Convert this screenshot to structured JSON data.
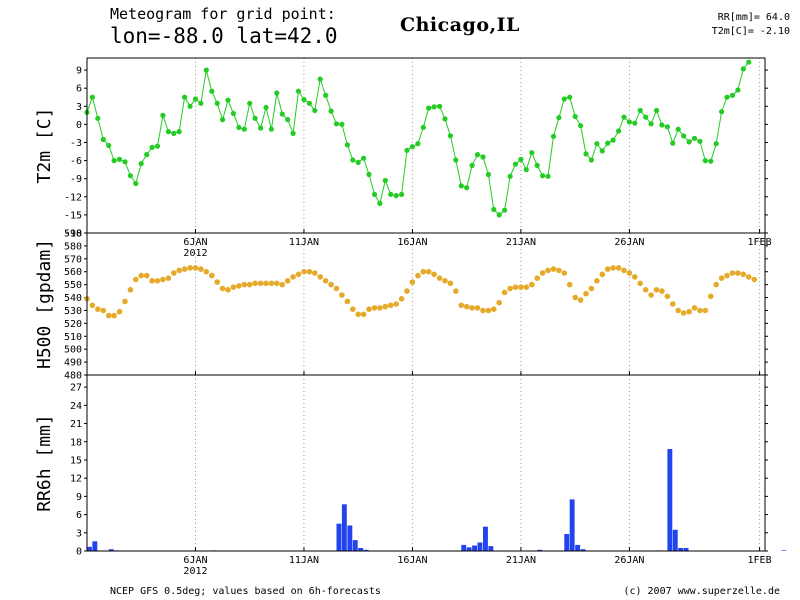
{
  "header": {
    "title": "Meteogram for grid point:",
    "coords": "lon=-88.0 lat=42.0",
    "location": "Chicago,IL",
    "rr_summary": "RR[mm]= 64.0",
    "t2m_summary": "T2m[C]= -2.10"
  },
  "footer": {
    "source": "NCEP GFS 0.5deg; values based on 6h-forecasts",
    "copyright": "(c) 2007 www.superzelle.de"
  },
  "x_axis": {
    "start": "2012-01-01",
    "end": "2012-02-01",
    "ticks": [
      {
        "label": "6JAN",
        "day": 5,
        "year": "2012"
      },
      {
        "label": "11JAN",
        "day": 10,
        "year": ""
      },
      {
        "label": "16JAN",
        "day": 15,
        "year": ""
      },
      {
        "label": "21JAN",
        "day": 20,
        "year": ""
      },
      {
        "label": "26JAN",
        "day": 25,
        "year": ""
      },
      {
        "label": "1FEB",
        "day": 31,
        "year": ""
      }
    ]
  },
  "chart_data": [
    {
      "type": "line",
      "ylabel": "T2m [C]",
      "color": "#22cc22",
      "ylim": [
        -18,
        11
      ],
      "yticks": [
        -18,
        -15,
        -12,
        -9,
        -6,
        -3,
        0,
        3,
        6,
        9
      ],
      "step_hours": 6,
      "values": [
        2,
        4.5,
        1,
        -2.5,
        -3.5,
        -6,
        -5.8,
        -6.2,
        -8.5,
        -9.8,
        -6.5,
        -5,
        -3.8,
        -3.6,
        1.5,
        -1.2,
        -1.5,
        -1.2,
        4.5,
        3,
        4.2,
        3.5,
        9,
        5.5,
        3.5,
        0.8,
        4,
        1.8,
        -0.5,
        -0.8,
        3.5,
        1,
        -0.6,
        2.8,
        -0.8,
        5.2,
        1.7,
        0.8,
        -1.5,
        5.5,
        4.1,
        3.5,
        2.3,
        7.5,
        4.8,
        2.2,
        0.1,
        0,
        -3.4,
        -5.9,
        -6.3,
        -5.6,
        -8.3,
        -11.6,
        -13.1,
        -9.3,
        -11.6,
        -11.8,
        -11.6,
        -4.3,
        -3.7,
        -3.2,
        -0.5,
        2.7,
        2.9,
        3,
        0.9,
        -1.9,
        -5.9,
        -10.2,
        -10.5,
        -6.8,
        -5,
        -5.4,
        -8.3,
        -14.1,
        -15,
        -14.2,
        -8.6,
        -6.6,
        -5.8,
        -7.5,
        -4.7,
        -6.8,
        -8.5,
        -8.6,
        -2,
        1.1,
        4.2,
        4.5,
        1.3,
        -0.2,
        -4.9,
        -5.9,
        -3.2,
        -4.4,
        -3.1,
        -2.6,
        -1.1,
        1.2,
        0.4,
        0.2,
        2.3,
        1.2,
        0.1,
        2.3,
        -0.1,
        -0.4,
        -3.1,
        -0.8,
        -1.9,
        -2.9,
        -2.3,
        -2.8,
        -6,
        -6.1,
        -3.2,
        2.1,
        4.5,
        4.8,
        5.7,
        9.2,
        10.3
      ]
    },
    {
      "type": "scatter",
      "ylabel": "H500 [gpdam]",
      "color": "#e6aa2a",
      "ylim": [
        480,
        590
      ],
      "yticks": [
        480,
        490,
        500,
        510,
        520,
        530,
        540,
        550,
        560,
        570,
        580,
        590
      ],
      "step_hours": 6,
      "values": [
        539,
        534,
        531,
        530,
        526,
        526,
        529,
        537,
        546,
        554,
        557,
        557,
        553,
        553,
        554,
        555,
        559,
        561,
        562,
        563,
        563,
        562,
        560,
        557,
        552,
        547,
        546,
        548,
        549,
        550,
        550,
        551,
        551,
        551,
        551,
        551,
        550,
        553,
        556,
        558,
        560,
        560,
        559,
        556,
        553,
        550,
        547,
        542,
        537,
        531,
        527,
        527,
        531,
        532,
        532,
        533,
        534,
        535,
        539,
        545,
        552,
        557,
        560,
        560,
        558,
        555,
        553,
        551,
        545,
        534,
        533,
        532,
        532,
        530,
        530,
        531,
        536,
        544,
        547,
        548,
        548,
        548,
        550,
        555,
        559,
        561,
        562,
        561,
        559,
        550,
        540,
        538,
        543,
        547,
        553,
        558,
        562,
        563,
        563,
        561,
        559,
        556,
        551,
        546,
        542,
        546,
        545,
        541,
        535,
        530,
        528,
        529,
        532,
        530,
        530,
        541,
        550,
        555,
        557,
        559,
        559,
        558,
        556,
        554
      ]
    },
    {
      "type": "bar",
      "ylabel": "RR6h [mm]",
      "color": "#2244ee",
      "ylim": [
        0,
        29
      ],
      "yticks": [
        0,
        3,
        6,
        9,
        12,
        15,
        18,
        21,
        24,
        27
      ],
      "step_hours": 6,
      "values": [
        0.7,
        1.6,
        0,
        0,
        0.3,
        0.1,
        0,
        0,
        0,
        0,
        0,
        0,
        0,
        0,
        0,
        0,
        0,
        0,
        0,
        0,
        0,
        0,
        0,
        0.1,
        0,
        0,
        0,
        0,
        0,
        0,
        0,
        0,
        0,
        0,
        0,
        0,
        0,
        0,
        0,
        0,
        0,
        0,
        0,
        0,
        0,
        0,
        4.5,
        7.7,
        4.2,
        1.8,
        0.5,
        0.2,
        0,
        0,
        0,
        0,
        0,
        0,
        0,
        0,
        0,
        0,
        0,
        0,
        0,
        0,
        0,
        0,
        0,
        1.0,
        0.6,
        0.9,
        1.4,
        4,
        0.8,
        0,
        0,
        0,
        0,
        0,
        0,
        0,
        0,
        0.2,
        0,
        0,
        0,
        0,
        2.8,
        8.5,
        1,
        0.3,
        0,
        0,
        0,
        0,
        0,
        0,
        0,
        0,
        0,
        0,
        0,
        0,
        0,
        0.1,
        0,
        16.8,
        3.5,
        0.5,
        0.5,
        0,
        0,
        0,
        0,
        0,
        0,
        0,
        0,
        0,
        0,
        0,
        0,
        0,
        0,
        0,
        0,
        0,
        0.1,
        0,
        0,
        0,
        0,
        0,
        0,
        0,
        0,
        1,
        1.2,
        0,
        0,
        0,
        0,
        0,
        0,
        0,
        0.2,
        0,
        0,
        0,
        0,
        0,
        0,
        0.5,
        0,
        0,
        0,
        0,
        0,
        0,
        0,
        0.7,
        0.6
      ]
    }
  ]
}
